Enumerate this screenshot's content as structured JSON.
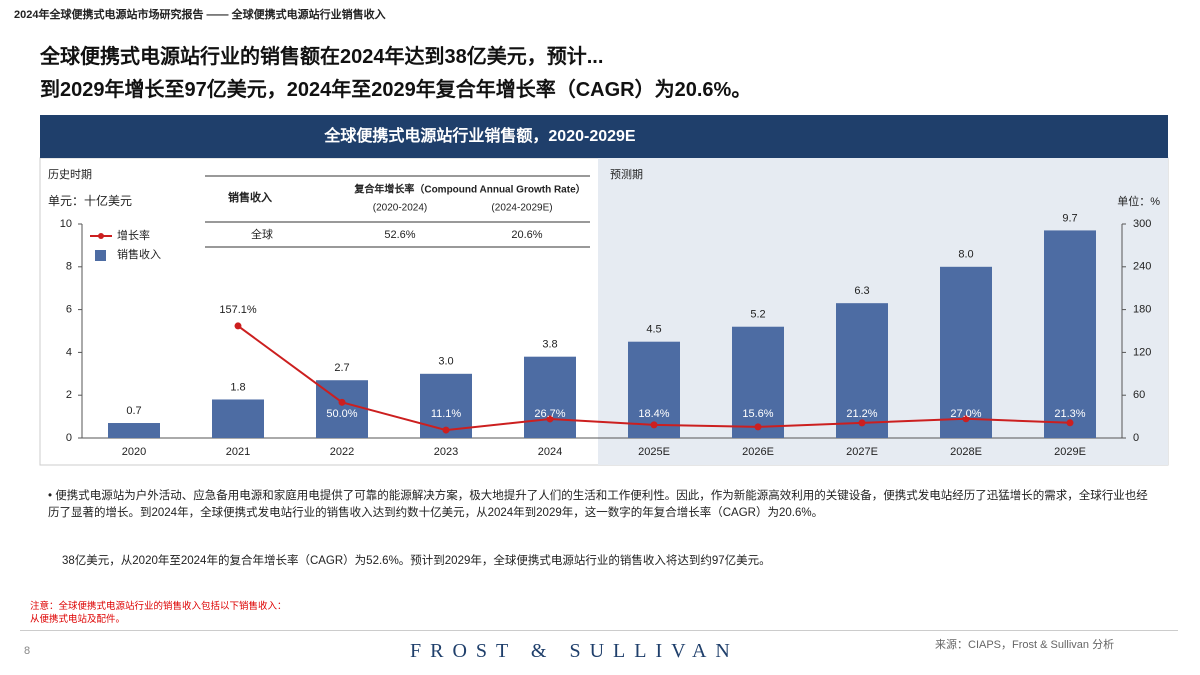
{
  "header": {
    "report": "2024年全球便携式电源站市场研究报告 —— 全球便携式电源站行业销售收入",
    "headline": [
      "全球便携式电源站行业的销售额在2024年达到38亿美元，预计...",
      "到2029年增长至97亿美元，2024年至2029年复合年增长率（CAGR）为20.6%。"
    ]
  },
  "chart_data": {
    "type": "bar",
    "title": "全球便携式电源站行业销售额，2020-2029E",
    "period_labels": [
      "历史时期",
      "预测期"
    ],
    "y_axis_label": "单元：十亿美元",
    "y2_axis_label": "单位：%",
    "categories": [
      "2020",
      "2021",
      "2022",
      "2023",
      "2024",
      "2025E",
      "2026E",
      "2027E",
      "2028E",
      "2029E"
    ],
    "series": [
      {
        "name": "销售收入",
        "type": "bar",
        "color": "#4d6ca3",
        "values": [
          0.7,
          1.8,
          2.7,
          3.0,
          3.8,
          4.5,
          5.2,
          6.3,
          8.0,
          9.7
        ],
        "value_labels": [
          "0.7",
          "1.8",
          "2.7",
          "3.0",
          "3.8",
          "4.5",
          "5.2",
          "6.3",
          "8.0",
          "9.7"
        ]
      },
      {
        "name": "增长率",
        "type": "line",
        "axis": "y2",
        "color": "#cc1f1f",
        "values": [
          null,
          157.1,
          50.0,
          11.1,
          26.7,
          18.4,
          15.6,
          21.2,
          27.0,
          21.3
        ],
        "value_labels": [
          null,
          "157.1%",
          "50.0%",
          "11.1%",
          "26.7%",
          "18.4%",
          "15.6%",
          "21.2%",
          "27.0%",
          "21.3%"
        ]
      }
    ],
    "ylim": [
      0,
      10
    ],
    "yticks": [
      0,
      2,
      4,
      6,
      8,
      10
    ],
    "y2lim": [
      0,
      300
    ],
    "y2ticks": [
      0,
      60,
      120,
      180,
      240,
      300
    ],
    "grid": false,
    "legend": "top-left"
  },
  "cagr_table": {
    "header": [
      "销售收入",
      "复合年增长率（Compound Annual Growth Rate）"
    ],
    "periods": [
      "(2020-2024)",
      "(2024-2029E)"
    ],
    "rows": [
      [
        "全球",
        "52.6%",
        "20.6%"
      ]
    ]
  },
  "body": [
    "• 便携式电源站为户外活动、应急备用电源和家庭用电提供了可靠的能源解决方案，极大地提升了人们的生活和工作便利性。因此，作为新能源高效利用的关键设备，便携式发电站经历了迅猛增长的需求，全球行业也经历了显著的增长。到2024年，全球便携式发电站行业的销售收入达到约数十亿美元，从2024年到2029年，这一数字的年复合增长率（CAGR）为20.6%。",
    "38亿美元，从2020年至2024年的复合年增长率（CAGR）为52.6%。预计到2029年，全球便携式电源站行业的销售收入将达到约97亿美元。"
  ],
  "note": [
    "注意：全球便携式电源站行业的销售收入包括以下销售收入：",
    "从便携式电站及配件。"
  ],
  "footer": {
    "page": "8",
    "logo": "FROST & SULLIVAN",
    "source": "来源：CIAPS，Frost & Sullivan 分析"
  }
}
